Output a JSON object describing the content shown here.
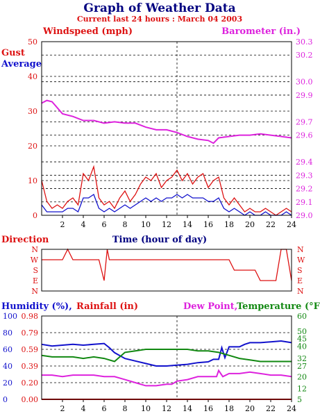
{
  "title": "Graph of Weather Data",
  "subtitle": "Current last 24 hours : March 04 2003",
  "colors": {
    "red": "#dd1111",
    "blue": "#1111cc",
    "magenta": "#dd22dd",
    "green": "#118811",
    "black": "#000000",
    "navy": "#000080"
  },
  "labels": {
    "windspeed": "Windspeed (mph)",
    "barometer": "Barometer (in.)",
    "gust": "Gust",
    "average": "Average",
    "time": "Time (hour of day)",
    "direction": "Direction",
    "humidity": "Humidity (%),",
    "rainfall": "Rainfall (in)",
    "dewpoint": "Dew Point,",
    "temperature": "Temperature (°F)"
  },
  "chart_data": [
    {
      "type": "line",
      "title": "Graph of Weather Data",
      "subtitle": "Current last 24 hours : March 04 2003",
      "xlabel": "Time (hour of day)",
      "xlim": [
        0,
        24
      ],
      "x_ticks": [
        2,
        4,
        6,
        8,
        10,
        12,
        14,
        16,
        18,
        20,
        22,
        24
      ],
      "y_left": {
        "label": "Windspeed (mph)",
        "lim": [
          0,
          50
        ],
        "ticks": [
          0,
          10,
          20,
          30,
          40,
          50
        ]
      },
      "y_right": {
        "label": "Barometer (in.)",
        "lim": [
          29.0,
          30.3
        ],
        "ticks": [
          29.0,
          29.1,
          29.2,
          29.3,
          29.4,
          29.6,
          29.7,
          29.9,
          30.0,
          30.2,
          30.3
        ]
      },
      "grid": true,
      "series": [
        {
          "name": "Gust",
          "color": "#dd1111",
          "x": [
            0,
            0.5,
            1,
            1.5,
            2,
            2.5,
            3,
            3.5,
            4,
            4.5,
            5,
            5.5,
            6,
            6.5,
            7,
            7.5,
            8,
            8.5,
            9,
            9.5,
            10,
            10.5,
            11,
            11.5,
            12,
            12.5,
            13,
            13.5,
            14,
            14.5,
            15,
            15.5,
            16,
            16.5,
            17,
            17.5,
            18,
            18.5,
            19,
            19.5,
            20,
            20.5,
            21,
            21.5,
            22,
            22.5,
            23,
            23.5,
            24
          ],
          "values": [
            10,
            4,
            2,
            3,
            2,
            4,
            5,
            3,
            12,
            10,
            14,
            5,
            3,
            4,
            2,
            5,
            7,
            4,
            6,
            9,
            11,
            10,
            12,
            8,
            10,
            11,
            13,
            10,
            12,
            9,
            11,
            12,
            8,
            10,
            11,
            5,
            3,
            5,
            3,
            1,
            2,
            1,
            1,
            2,
            1,
            0,
            1,
            2,
            1
          ]
        },
        {
          "name": "Average",
          "color": "#1111cc",
          "x": [
            0,
            0.5,
            1,
            1.5,
            2,
            2.5,
            3,
            3.5,
            4,
            4.5,
            5,
            5.5,
            6,
            6.5,
            7,
            7.5,
            8,
            8.5,
            9,
            9.5,
            10,
            10.5,
            11,
            11.5,
            12,
            12.5,
            13,
            13.5,
            14,
            14.5,
            15,
            15.5,
            16,
            16.5,
            17,
            17.5,
            18,
            18.5,
            19,
            19.5,
            20,
            20.5,
            21,
            21.5,
            22,
            22.5,
            23,
            23.5,
            24
          ],
          "values": [
            3,
            1,
            1,
            1,
            1,
            2,
            2,
            1,
            5,
            5,
            6,
            2,
            1,
            2,
            1,
            2,
            3,
            2,
            3,
            4,
            5,
            4,
            5,
            4,
            5,
            5,
            6,
            5,
            6,
            5,
            5,
            5,
            4,
            4,
            5,
            2,
            1,
            2,
            1,
            0,
            1,
            0,
            0,
            1,
            0,
            0,
            0,
            1,
            0
          ]
        },
        {
          "name": "Barometer",
          "color": "#dd22dd",
          "axis": "right",
          "x": [
            0,
            0.5,
            1,
            2,
            3,
            4,
            5,
            6,
            7,
            8,
            9,
            10,
            11,
            12,
            13,
            14,
            15,
            16,
            16.5,
            17,
            18,
            19,
            20,
            21,
            22,
            23,
            24
          ],
          "values": [
            29.84,
            29.86,
            29.85,
            29.76,
            29.74,
            29.71,
            29.71,
            29.69,
            29.7,
            29.69,
            29.69,
            29.66,
            29.64,
            29.64,
            29.62,
            29.59,
            29.57,
            29.56,
            29.54,
            29.58,
            29.59,
            29.6,
            29.6,
            29.61,
            29.6,
            29.59,
            29.58
          ]
        }
      ]
    },
    {
      "type": "line",
      "title": "Direction",
      "xlim": [
        0,
        24
      ],
      "y_categories": [
        "N",
        "W",
        "S",
        "E",
        "N"
      ],
      "series": [
        {
          "name": "Direction",
          "color": "#dd1111",
          "x": [
            0,
            0.5,
            1,
            2,
            2.5,
            3,
            3.5,
            4,
            5,
            5.5,
            6,
            6.3,
            6.5,
            7,
            8,
            9,
            10,
            11,
            12,
            13,
            14,
            15,
            16,
            17,
            18,
            18.5,
            19,
            19.5,
            20,
            20.5,
            21,
            21.5,
            22,
            22.5,
            23,
            23.5,
            24
          ],
          "values": [
            "W",
            "W",
            "W",
            "W",
            "N",
            "W",
            "W",
            "W",
            "W",
            "W",
            "E",
            "N",
            "W",
            "W",
            "W",
            "W",
            "W",
            "W",
            "W",
            "W",
            "W",
            "W",
            "W",
            "W",
            "W",
            "S",
            "S",
            "S",
            "S",
            "S",
            "E",
            "E",
            "E",
            "E",
            "N",
            "N",
            "E"
          ]
        }
      ]
    },
    {
      "type": "line",
      "xlim": [
        0,
        24
      ],
      "y_left": [
        {
          "label": "Humidity (%),",
          "lim": [
            0,
            100
          ],
          "ticks": [
            0,
            20,
            40,
            60,
            80,
            100
          ]
        },
        {
          "label": "Rainfall (in)",
          "lim": [
            0.0,
            0.98
          ],
          "ticks": [
            "0.00",
            "0.20",
            "0.39",
            "0.59",
            "0.79",
            "0.98"
          ]
        }
      ],
      "y_right": {
        "label": "Temperature (°F)",
        "lim": [
          5,
          60
        ],
        "ticks": [
          5,
          12,
          20,
          27,
          32,
          40,
          45,
          50,
          60
        ]
      },
      "series": [
        {
          "name": "Humidity",
          "color": "#1111cc",
          "x": [
            0,
            1,
            2,
            3,
            4,
            5,
            6,
            6.5,
            7,
            8,
            9,
            10,
            11,
            12,
            13,
            14,
            15,
            16,
            16.5,
            17,
            17.3,
            17.6,
            18,
            19,
            19.5,
            20,
            21,
            22,
            23,
            24
          ],
          "values": [
            66,
            64,
            65,
            66,
            65,
            66,
            67,
            62,
            56,
            49,
            46,
            43,
            40,
            40,
            41,
            42,
            44,
            45,
            48,
            48,
            62,
            50,
            63,
            63,
            66,
            68,
            68,
            69,
            70,
            68
          ]
        },
        {
          "name": "Temperature",
          "color": "#118811",
          "x": [
            0,
            1,
            2,
            3,
            4,
            5,
            6,
            7,
            8,
            9,
            10,
            11,
            12,
            13,
            14,
            15,
            16,
            17,
            18,
            19,
            20,
            21,
            22,
            23,
            24
          ],
          "values": [
            34,
            33,
            33,
            33,
            32,
            33,
            32,
            30,
            36,
            37,
            38,
            38,
            38,
            38,
            38,
            37,
            37,
            36,
            34,
            32,
            31,
            30,
            30,
            30,
            30
          ]
        },
        {
          "name": "Dew Point",
          "color": "#dd22dd",
          "axis": "right",
          "x": [
            0,
            1,
            2,
            3,
            4,
            5,
            6,
            7,
            8,
            9,
            10,
            11,
            12,
            12.5,
            13,
            14,
            15,
            16,
            16.8,
            17,
            17.4,
            18,
            19,
            20,
            21,
            22,
            23,
            24
          ],
          "values": [
            21,
            21,
            20,
            21,
            21,
            21,
            20,
            20,
            18,
            16,
            14,
            14,
            15,
            15,
            17,
            18,
            20,
            20,
            20,
            24,
            20,
            22,
            22,
            23,
            22,
            21,
            21,
            20
          ]
        }
      ]
    }
  ]
}
